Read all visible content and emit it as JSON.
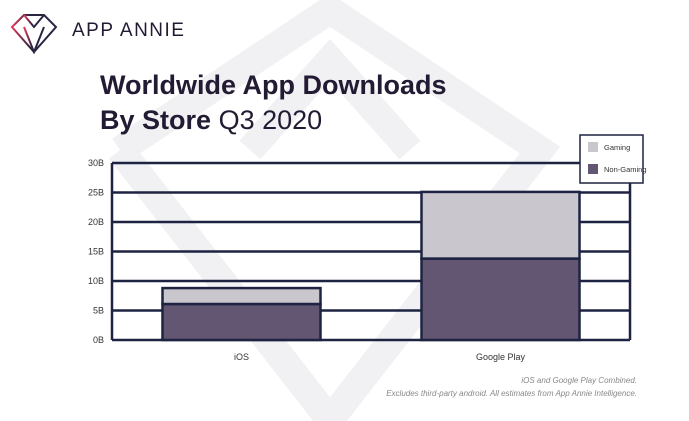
{
  "brand": {
    "name": "APP ANNIE"
  },
  "title": {
    "line1": "Worldwide App Downloads",
    "line2_bold": "By Store",
    "line2_light": "Q3 2020"
  },
  "footnotes": [
    "iOS and Google Play Combined.",
    "Excludes third-party android. All estimates from App Annie Intelligence."
  ],
  "colors": {
    "gaming": "#c9c6ce",
    "non_gaming": "#625672",
    "outline": "#1d2340"
  },
  "chart_data": {
    "type": "bar",
    "stacked": true,
    "title": "Worldwide App Downloads By Store Q3 2020",
    "categories": [
      "iOS",
      "Google Play"
    ],
    "series": [
      {
        "name": "Non-Gaming",
        "values": [
          6.1,
          13.8
        ]
      },
      {
        "name": "Gaming",
        "values": [
          2.7,
          11.3
        ]
      }
    ],
    "unit": "B",
    "ylim": [
      0,
      30
    ],
    "yticks": [
      "0B",
      "5B",
      "10B",
      "15B",
      "20B",
      "25B",
      "30B"
    ],
    "legend": [
      "Gaming",
      "Non-Gaming"
    ],
    "legend_position": "top-right",
    "grid": true
  }
}
